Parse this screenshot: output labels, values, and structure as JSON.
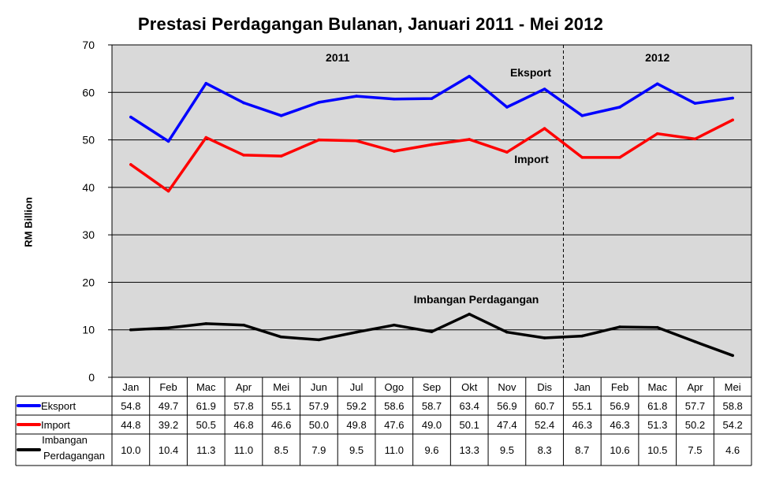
{
  "chart_data": {
    "type": "line",
    "title": "Prestasi Perdagangan Bulanan, Januari 2011 - Mei 2012",
    "ylabel": "RM Billion",
    "xlabel": "",
    "ylim": [
      0,
      70
    ],
    "yticks": [
      0,
      10,
      20,
      30,
      40,
      50,
      60,
      70
    ],
    "grid": true,
    "categories": [
      "Jan",
      "Feb",
      "Mac",
      "Apr",
      "Mei",
      "Jun",
      "Jul",
      "Ogo",
      "Sep",
      "Okt",
      "Nov",
      "Dis",
      "Jan",
      "Feb",
      "Mac",
      "Apr",
      "Mei"
    ],
    "year_labels": [
      "2011",
      "2012"
    ],
    "series": [
      {
        "name": "Eksport",
        "color": "#0000ff",
        "values": [
          54.8,
          49.7,
          61.9,
          57.8,
          55.1,
          57.9,
          59.2,
          58.6,
          58.7,
          63.4,
          56.9,
          60.7,
          55.1,
          56.9,
          61.8,
          57.7,
          58.8
        ]
      },
      {
        "name": "Import",
        "color": "#ff0000",
        "values": [
          44.8,
          39.2,
          50.5,
          46.8,
          46.6,
          50.0,
          49.8,
          47.6,
          49.0,
          50.1,
          47.4,
          52.4,
          46.3,
          46.3,
          51.3,
          50.2,
          54.2
        ]
      },
      {
        "name": "Imbangan Perdagangan",
        "table_name": [
          "Imbangan",
          "Perdagangan"
        ],
        "color": "#000000",
        "values": [
          10.0,
          10.4,
          11.3,
          11.0,
          8.5,
          7.9,
          9.5,
          11.0,
          9.6,
          13.3,
          9.5,
          8.3,
          8.7,
          10.6,
          10.5,
          7.5,
          4.6
        ]
      }
    ],
    "annotations": [
      "Eksport",
      "Import",
      "Imbangan Perdagangan"
    ]
  }
}
